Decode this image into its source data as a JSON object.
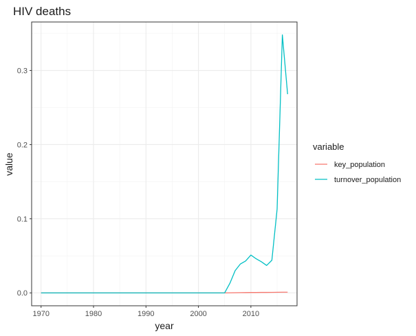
{
  "chart_data": {
    "type": "line",
    "title": "HIV deaths",
    "xlabel": "year",
    "ylabel": "value",
    "xlim": [
      1968.2,
      2018.8
    ],
    "ylim": [
      -0.0174,
      0.3654
    ],
    "x_ticks": [
      1970,
      1980,
      1990,
      2000,
      2010
    ],
    "y_ticks": [
      0.0,
      0.1,
      0.2,
      0.3
    ],
    "x_tick_labels": [
      "1970",
      "1980",
      "1990",
      "2000",
      "2010"
    ],
    "y_tick_labels": [
      "0.0",
      "0.1",
      "0.2",
      "0.3"
    ],
    "grid": true,
    "legend": {
      "title": "variable",
      "position": "right"
    },
    "x": [
      1970,
      1971,
      1972,
      1973,
      1974,
      1975,
      1976,
      1977,
      1978,
      1979,
      1980,
      1981,
      1982,
      1983,
      1984,
      1985,
      1986,
      1987,
      1988,
      1989,
      1990,
      1991,
      1992,
      1993,
      1994,
      1995,
      1996,
      1997,
      1998,
      1999,
      2000,
      2001,
      2002,
      2003,
      2004,
      2005,
      2006,
      2007,
      2008,
      2009,
      2010,
      2011,
      2012,
      2013,
      2014,
      2015,
      2016,
      2017
    ],
    "series": [
      {
        "name": "key_population",
        "color": "#F8766D",
        "values": [
          0,
          0,
          0,
          0,
          0,
          0,
          0,
          0,
          0,
          0,
          0,
          0,
          0,
          0,
          0,
          0,
          0,
          0,
          0,
          0,
          0,
          0,
          0,
          0,
          0,
          0,
          0,
          0,
          0,
          0,
          0,
          0,
          0,
          0,
          0,
          0,
          0.0001,
          0.0002,
          0.0003,
          0.0004,
          0.0005,
          0.0005,
          0.0006,
          0.0006,
          0.0007,
          0.0008,
          0.0009,
          0.0009
        ]
      },
      {
        "name": "turnover_population",
        "color": "#00BFC4",
        "values": [
          0,
          0,
          0,
          0,
          0,
          0,
          0,
          0,
          0,
          0,
          0,
          0,
          0,
          0,
          0,
          0,
          0,
          0,
          0,
          0,
          0,
          0,
          0,
          0,
          0,
          0,
          0,
          0,
          0,
          0,
          0,
          0,
          0,
          0,
          0,
          0,
          0.013,
          0.03,
          0.039,
          0.043,
          0.051,
          0.046,
          0.042,
          0.037,
          0.044,
          0.113,
          0.348,
          0.268
        ]
      }
    ]
  }
}
